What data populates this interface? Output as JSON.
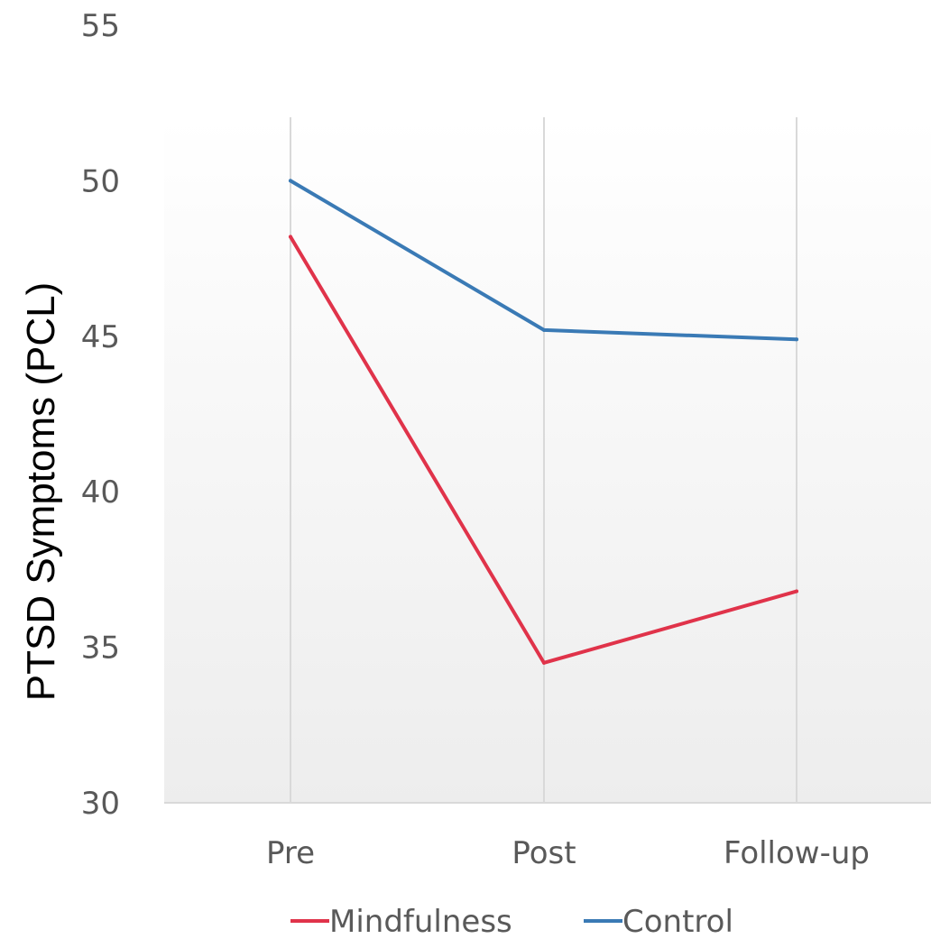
{
  "chart_data": {
    "type": "line",
    "categories": [
      "Pre",
      "Post",
      "Follow-up"
    ],
    "series": [
      {
        "name": "Mindfulness",
        "values": [
          48.2,
          34.5,
          36.8
        ],
        "color": "#e0334a"
      },
      {
        "name": "Control",
        "values": [
          50.0,
          45.2,
          44.9
        ],
        "color": "#3a7ab5"
      }
    ],
    "ylabel": "PTSD Symptoms (PCL)",
    "xlabel": "",
    "ylim": [
      30,
      55
    ],
    "yticks": [
      "30",
      "35",
      "40",
      "45",
      "50",
      "55"
    ],
    "grid": "vertical",
    "legend": "bottom"
  }
}
